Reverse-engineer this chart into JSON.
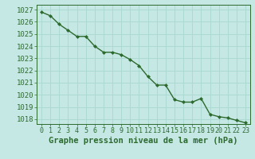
{
  "x": [
    0,
    1,
    2,
    3,
    4,
    5,
    6,
    7,
    8,
    9,
    10,
    11,
    12,
    13,
    14,
    15,
    16,
    17,
    18,
    19,
    20,
    21,
    22,
    23
  ],
  "y": [
    1026.8,
    1026.5,
    1025.8,
    1025.3,
    1024.8,
    1024.8,
    1024.0,
    1023.5,
    1023.5,
    1023.3,
    1022.9,
    1022.4,
    1021.5,
    1020.8,
    1020.8,
    1019.6,
    1019.4,
    1019.4,
    1019.7,
    1018.4,
    1018.2,
    1018.1,
    1017.9,
    1017.7
  ],
  "line_color": "#2d6a2d",
  "marker": "D",
  "marker_size": 2.0,
  "bg_color": "#c5e8e5",
  "grid_color": "#a8d8d0",
  "ylabel_ticks": [
    1018,
    1019,
    1020,
    1021,
    1022,
    1023,
    1024,
    1025,
    1026,
    1027
  ],
  "xlabel": "Graphe pression niveau de la mer (hPa)",
  "ylim": [
    1017.6,
    1027.4
  ],
  "xlim": [
    -0.5,
    23.5
  ],
  "tick_color": "#2d6a2d",
  "label_color": "#2d6a2d",
  "xlabel_fontsize": 7.5,
  "ytick_fontsize": 6.5,
  "xtick_fontsize": 6.0,
  "linewidth": 1.0
}
